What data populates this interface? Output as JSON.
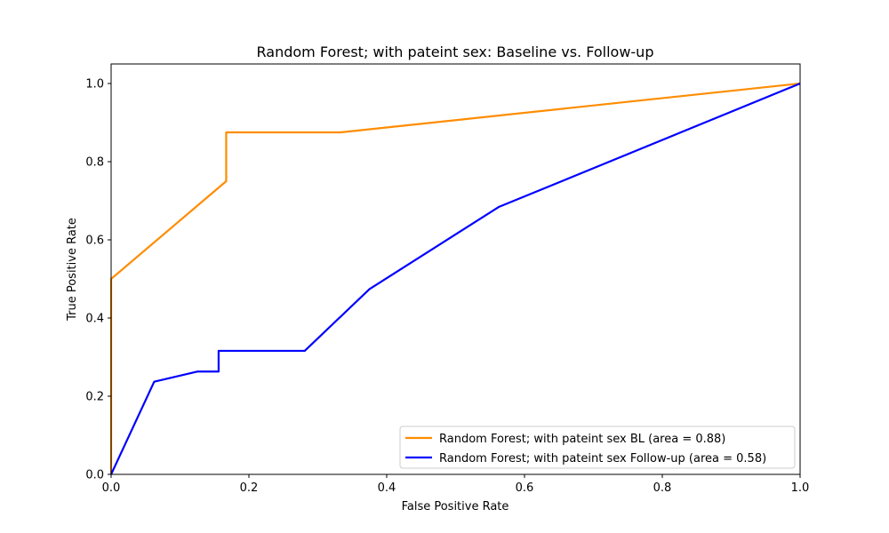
{
  "chart_data": {
    "type": "line",
    "title": "Random Forest; with pateint sex: Baseline vs. Follow-up",
    "xlabel": "False Positive Rate",
    "ylabel": "True Positive Rate",
    "xlim": [
      0.0,
      1.0
    ],
    "ylim": [
      0.0,
      1.05
    ],
    "xticks": [
      "0.0",
      "0.2",
      "0.4",
      "0.6",
      "0.8",
      "1.0"
    ],
    "yticks": [
      "0.0",
      "0.2",
      "0.4",
      "0.6",
      "0.8",
      "1.0"
    ],
    "grid": false,
    "legend_position": "lower-right",
    "series": [
      {
        "name": "Random Forest; with pateint sex BL (area = 0.88)",
        "color": "#ff8c00",
        "x": [
          0.0,
          0.0,
          0.167,
          0.167,
          0.333,
          1.0
        ],
        "y": [
          0.0,
          0.5,
          0.75,
          0.875,
          0.875,
          1.0
        ]
      },
      {
        "name": "Random Forest; with pateint sex Follow-up (area = 0.58)",
        "color": "#0000ff",
        "x": [
          0.0,
          0.0625,
          0.125,
          0.156,
          0.156,
          0.281,
          0.375,
          0.5625,
          1.0
        ],
        "y": [
          0.0,
          0.237,
          0.263,
          0.263,
          0.316,
          0.316,
          0.474,
          0.684,
          1.0
        ]
      }
    ]
  }
}
